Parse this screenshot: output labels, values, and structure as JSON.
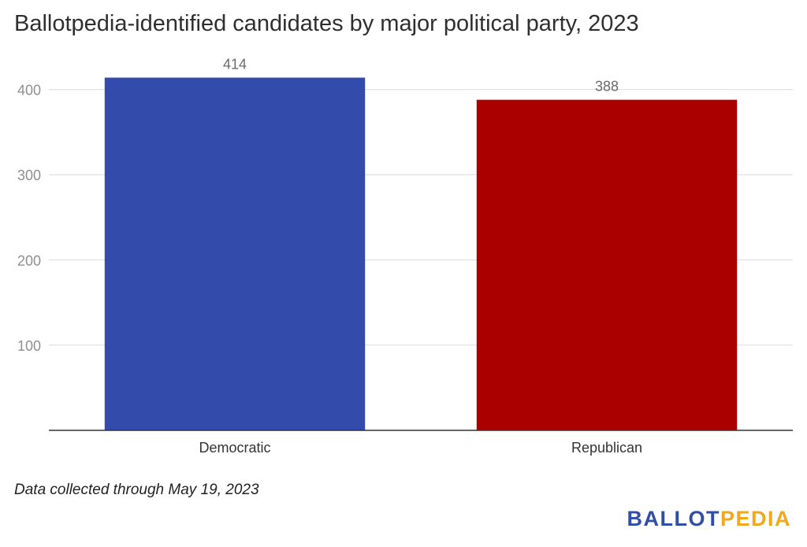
{
  "chart_data": {
    "type": "bar",
    "title": "Ballotpedia-identified candidates by major political party, 2023",
    "categories": [
      "Democratic",
      "Republican"
    ],
    "values": [
      414,
      388
    ],
    "colors": [
      "#334bab",
      "#ab0000"
    ],
    "ylim": [
      0,
      420
    ],
    "yticks": [
      100,
      200,
      300,
      400
    ],
    "grid": true,
    "xlabel": "",
    "ylabel": ""
  },
  "footnote": "Data collected through May 19, 2023",
  "logo": {
    "part1": "BALLOT",
    "part2": "PEDIA"
  }
}
